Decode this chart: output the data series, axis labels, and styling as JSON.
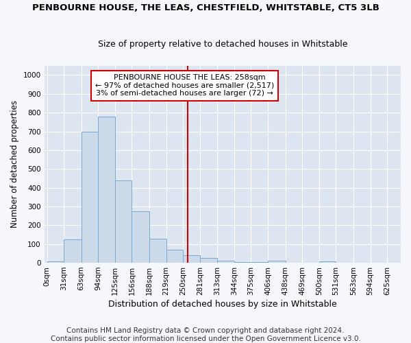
{
  "title": "PENBOURNE HOUSE, THE LEAS, CHESTFIELD, WHITSTABLE, CT5 3LB",
  "subtitle": "Size of property relative to detached houses in Whitstable",
  "xlabel": "Distribution of detached houses by size in Whitstable",
  "ylabel": "Number of detached properties",
  "bar_color": "#ccd9e8",
  "bar_edge_color": "#7aaad0",
  "background_color": "#dde6f0",
  "grid_color": "#ffffff",
  "fig_background": "#f5f7fa",
  "vline_value": 258,
  "vline_color": "#cc0000",
  "annotation_box_color": "#cc0000",
  "annotation_line1": "    PENBOURNE HOUSE THE LEAS: 258sqm",
  "annotation_line2": "← 97% of detached houses are smaller (2,517)",
  "annotation_line3": "3% of semi-detached houses are larger (72) →",
  "annotation_fontsize": 8,
  "bin_edges": [
    0,
    31,
    63,
    94,
    125,
    156,
    188,
    219,
    250,
    281,
    313,
    344,
    375,
    406,
    438,
    469,
    500,
    531,
    563,
    594,
    625
  ],
  "bar_heights": [
    8,
    125,
    700,
    780,
    440,
    275,
    130,
    70,
    40,
    25,
    10,
    5,
    5,
    10,
    0,
    0,
    8,
    0,
    0,
    0
  ],
  "ylim": [
    0,
    1050
  ],
  "xlim": [
    -5,
    650
  ],
  "yticks": [
    0,
    100,
    200,
    300,
    400,
    500,
    600,
    700,
    800,
    900,
    1000
  ],
  "xtick_labels": [
    "0sqm",
    "31sqm",
    "63sqm",
    "94sqm",
    "125sqm",
    "156sqm",
    "188sqm",
    "219sqm",
    "250sqm",
    "281sqm",
    "313sqm",
    "344sqm",
    "375sqm",
    "406sqm",
    "438sqm",
    "469sqm",
    "500sqm",
    "531sqm",
    "563sqm",
    "594sqm",
    "625sqm"
  ],
  "xtick_positions": [
    0,
    31,
    63,
    94,
    125,
    156,
    188,
    219,
    250,
    281,
    313,
    344,
    375,
    406,
    438,
    469,
    500,
    531,
    563,
    594,
    625
  ],
  "footer_line1": "Contains HM Land Registry data © Crown copyright and database right 2024.",
  "footer_line2": "Contains public sector information licensed under the Open Government Licence v3.0.",
  "title_fontsize": 9.5,
  "subtitle_fontsize": 9,
  "ylabel_fontsize": 8.5,
  "xlabel_fontsize": 9,
  "tick_fontsize": 7.5,
  "footer_fontsize": 7.5
}
